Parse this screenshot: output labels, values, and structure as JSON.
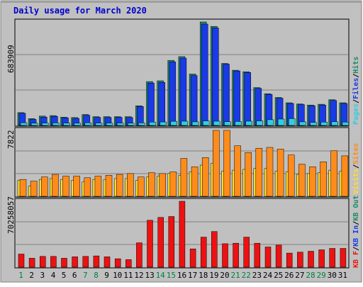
{
  "chart_data": {
    "type": "bar",
    "title": "Daily usage for March 2020",
    "categories": [
      "1",
      "2",
      "3",
      "4",
      "5",
      "6",
      "7",
      "8",
      "9",
      "10",
      "11",
      "12",
      "13",
      "14",
      "15",
      "16",
      "17",
      "18",
      "19",
      "20",
      "21",
      "22",
      "23",
      "24",
      "25",
      "26",
      "27",
      "28",
      "29",
      "30",
      "31"
    ],
    "weekend_days": [
      "1",
      "7",
      "8",
      "14",
      "15",
      "21",
      "22",
      "28",
      "29"
    ],
    "grid": true,
    "panels": [
      {
        "id": "top",
        "ymax_label": "683909",
        "ylim": [
          0,
          683909
        ],
        "legend": [
          "Pages",
          "/",
          "Files",
          "/",
          "Hits"
        ],
        "series": [
          {
            "name": "Hits",
            "color": "#1a8a6a",
            "values": [
              85000,
              45000,
              62000,
              65000,
              55000,
              52000,
              72000,
              58000,
              58000,
              58000,
              58000,
              130000,
              290000,
              295000,
              430000,
              455000,
              340000,
              683909,
              655000,
              410000,
              365000,
              355000,
              250000,
              210000,
              185000,
              150000,
              142000,
              135000,
              140000,
              170000,
              150000
            ]
          },
          {
            "name": "Files",
            "color": "#1a3ae6",
            "values": [
              80000,
              40000,
              55000,
              60000,
              50000,
              47000,
              67000,
              53000,
              53000,
              54000,
              52000,
              125000,
              280000,
              285000,
              420000,
              445000,
              330000,
              670000,
              645000,
              405000,
              360000,
              350000,
              245000,
              205000,
              180000,
              145000,
              138000,
              130000,
              135000,
              165000,
              145000
            ]
          },
          {
            "name": "Pages",
            "color": "#33ccdd",
            "values": [
              18000,
              15000,
              16000,
              17000,
              16000,
              15000,
              18000,
              16000,
              16000,
              16000,
              15000,
              17000,
              22000,
              23000,
              27000,
              28000,
              24000,
              30000,
              28000,
              25000,
              26000,
              28000,
              30000,
              38000,
              42000,
              45000,
              24000,
              20000,
              22000,
              25000,
              22000
            ]
          }
        ]
      },
      {
        "id": "middle",
        "ymax_label": "7822",
        "ylim": [
          0,
          7822
        ],
        "legend": [
          "Visits",
          "/",
          "Sites"
        ],
        "series": [
          {
            "name": "Sites",
            "color": "#ff8c1a",
            "values": [
              2000,
              1800,
              2300,
              2600,
              2400,
              2400,
              2200,
              2400,
              2500,
              2600,
              2700,
              2300,
              2800,
              2700,
              2900,
              4500,
              3500,
              4600,
              7822,
              7822,
              6000,
              5200,
              5700,
              5800,
              5600,
              4900,
              3800,
              3500,
              4100,
              5400,
              4800
            ]
          },
          {
            "name": "Visits",
            "color": "#ffdd33",
            "values": [
              1900,
              1200,
              2000,
              2100,
              2000,
              1900,
              1700,
              2000,
              2000,
              2100,
              2100,
              1900,
              2300,
              2400,
              2700,
              2500,
              2900,
              3700,
              3900,
              3000,
              3100,
              3200,
              3300,
              3300,
              3000,
              2900,
              2600,
              2700,
              2800,
              3100,
              3000
            ]
          }
        ]
      },
      {
        "id": "bottom",
        "ymax_label": "70258057",
        "ylim": [
          0,
          70258057
        ],
        "legend": [
          "KB F",
          "/",
          "KB In",
          "/",
          "KB Out"
        ],
        "series": [
          {
            "name": "KBytes",
            "color": "#ee1111",
            "values": [
              14000000,
              9500000,
              11500000,
              11500000,
              9500000,
              11000000,
              11500000,
              12000000,
              11000000,
              9000000,
              8000000,
              26000000,
              50000000,
              53000000,
              54000000,
              70258057,
              19500000,
              32000000,
              38000000,
              25000000,
              25500000,
              32000000,
              25500000,
              21500000,
              23500000,
              15000000,
              16000000,
              17000000,
              18500000,
              20000000,
              20000000
            ]
          }
        ]
      }
    ]
  }
}
